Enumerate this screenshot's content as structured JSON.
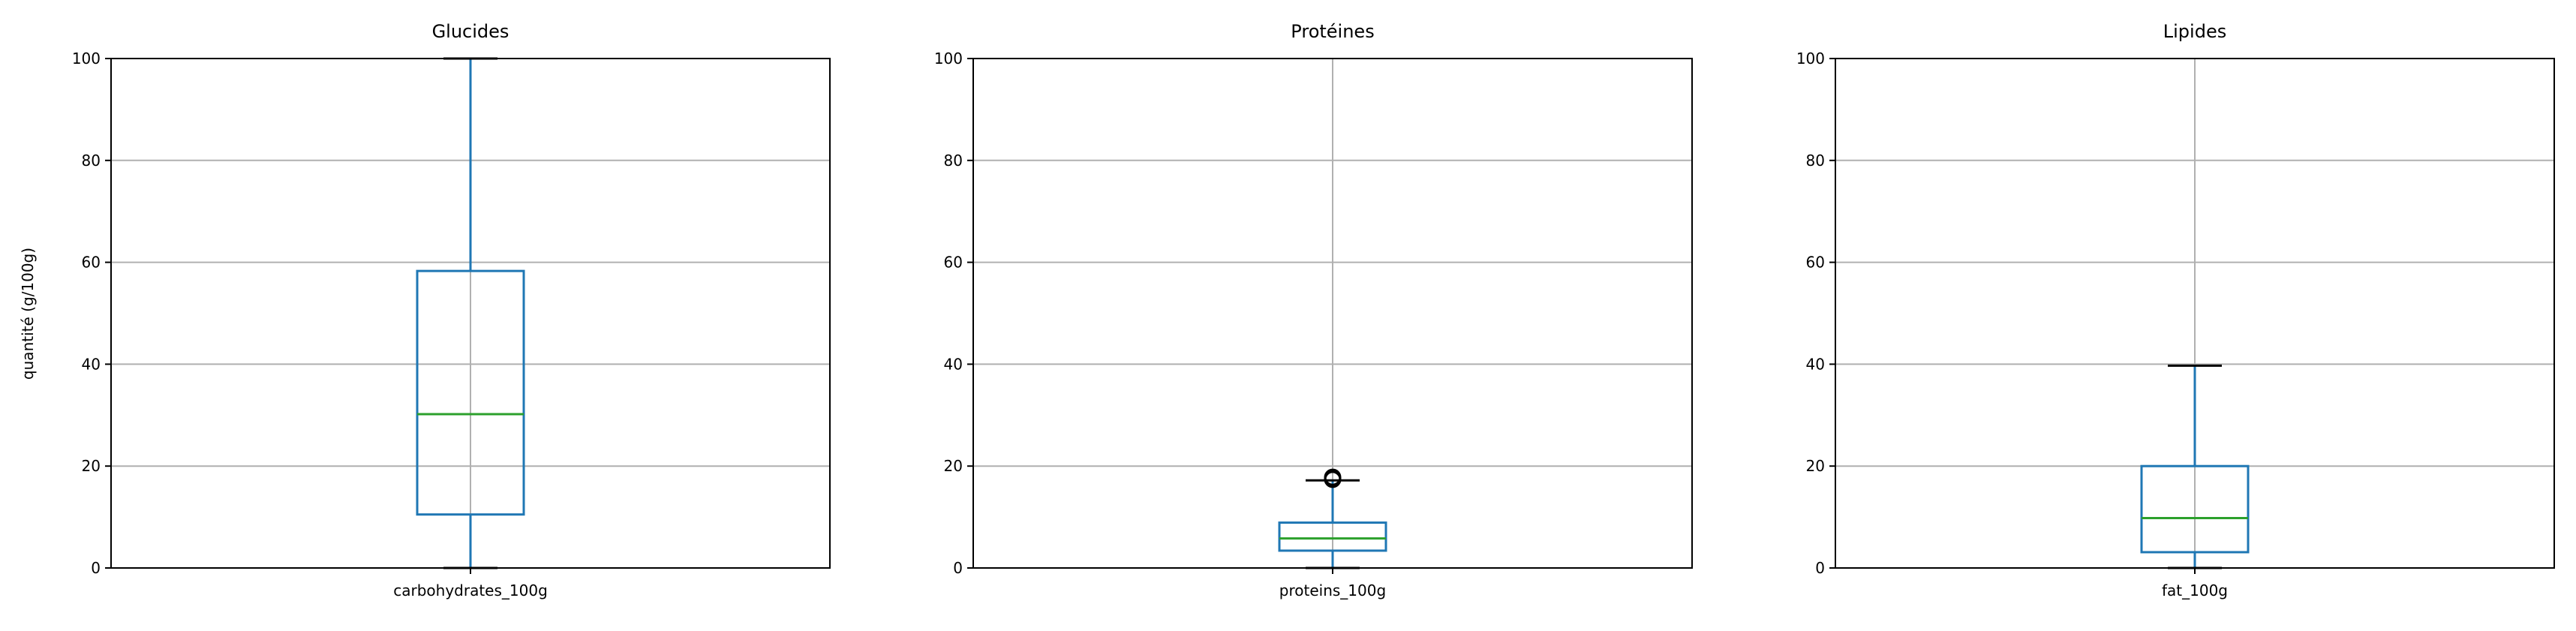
{
  "figure": {
    "ylabel": "quantité (g/100g)",
    "grid": true
  },
  "colors": {
    "box": "#1f77b4",
    "median": "#2ca02c",
    "grid": "#b0b0b0",
    "axes": "#000000",
    "whisker": "#1f77b4",
    "cap": "#000000"
  },
  "chart_data": [
    {
      "type": "box",
      "title": "Glucides",
      "categories": [
        "carbohydrates_100g"
      ],
      "ylabel": "quantité (g/100g)",
      "ylim": [
        0,
        100
      ],
      "yticks": [
        0,
        20,
        40,
        60,
        80,
        100
      ],
      "grid": true,
      "stats": {
        "whislo": 0,
        "q1": 10.5,
        "med": 30.2,
        "q3": 58.3,
        "whishi": 100
      },
      "outliers": []
    },
    {
      "type": "box",
      "title": "Protéines",
      "categories": [
        "proteins_100g"
      ],
      "ylabel": "",
      "ylim": [
        0,
        100
      ],
      "yticks": [
        0,
        20,
        40,
        60,
        80,
        100
      ],
      "grid": true,
      "stats": {
        "whislo": 0,
        "q1": 3.4,
        "med": 5.8,
        "q3": 8.9,
        "whishi": 17.2
      },
      "outliers": [
        17.4,
        17.8
      ]
    },
    {
      "type": "box",
      "title": "Lipides",
      "categories": [
        "fat_100g"
      ],
      "ylabel": "",
      "ylim": [
        0,
        100
      ],
      "yticks": [
        0,
        20,
        40,
        60,
        80,
        100
      ],
      "grid": true,
      "stats": {
        "whislo": 0,
        "q1": 3.1,
        "med": 9.8,
        "q3": 20.0,
        "whishi": 39.7
      },
      "outliers": []
    }
  ]
}
